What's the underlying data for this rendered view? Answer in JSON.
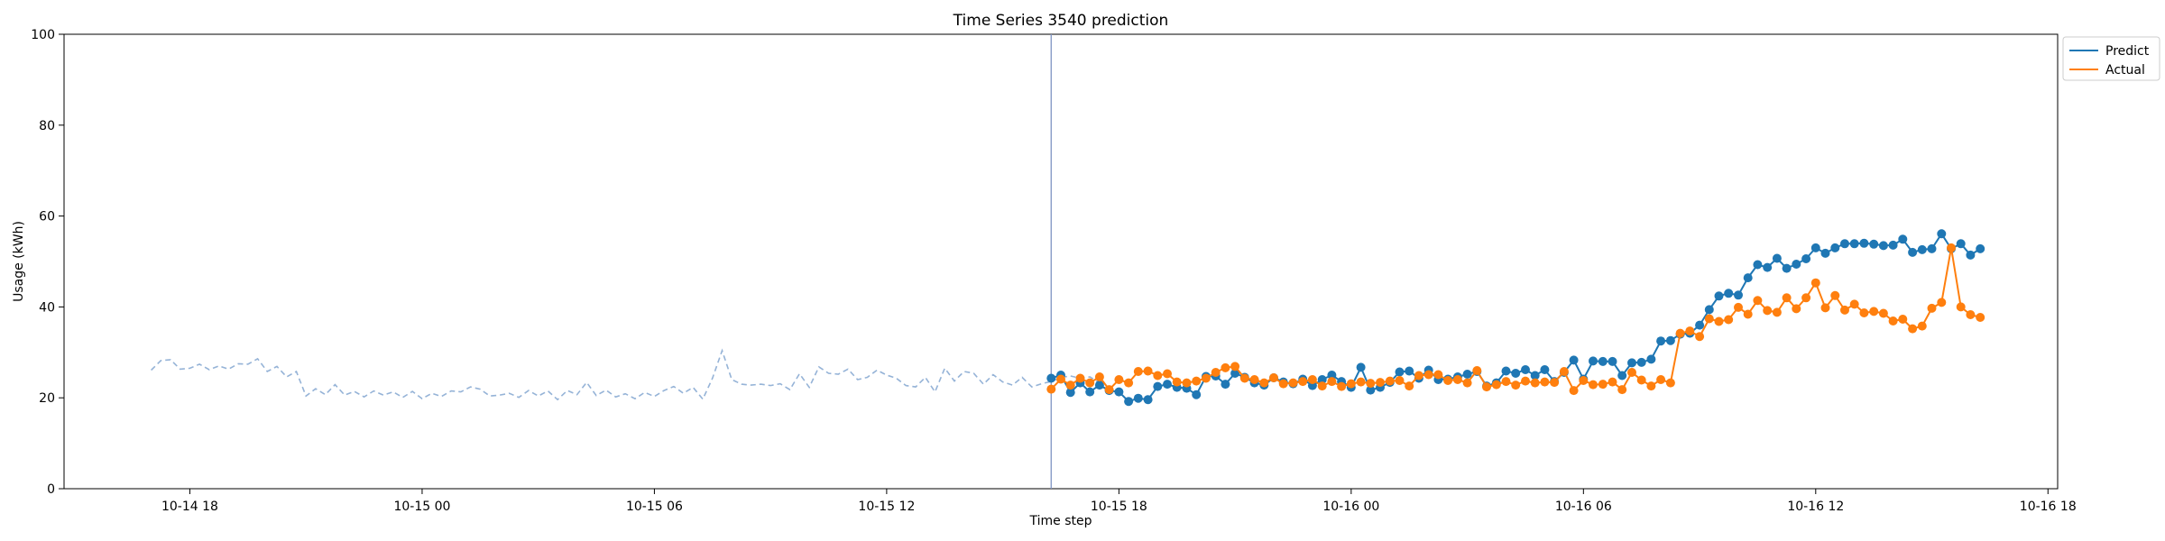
{
  "chart_data": {
    "type": "line",
    "title": "Time Series 3540 prediction",
    "xlabel": "Time step",
    "ylabel": "Usage (kWh)",
    "ylim": [
      0,
      100
    ],
    "xlim": [
      "10-14 14:45",
      "10-16 18:15"
    ],
    "x_ticks": [
      "10-14 18",
      "10-15 00",
      "10-15 06",
      "10-15 12",
      "10-15 18",
      "10-16 00",
      "10-16 06",
      "10-16 12",
      "10-16 18"
    ],
    "y_ticks": [
      0,
      20,
      40,
      60,
      80,
      100
    ],
    "grid": false,
    "legend_position": "upper right outside",
    "forecast_start": "10-15 16:15",
    "x_step_minutes": 15,
    "history": {
      "x_start": "10-14 17:00",
      "style": "dashed",
      "color": "#95b3d7",
      "values": [
        26.1,
        28.2,
        28.4,
        26.3,
        26.5,
        27.4,
        26.2,
        27.0,
        26.3,
        27.5,
        27.4,
        28.6,
        25.8,
        26.9,
        24.6,
        25.8,
        20.4,
        22.0,
        20.7,
        22.9,
        20.6,
        21.4,
        20.2,
        21.5,
        20.6,
        21.3,
        20.1,
        21.4,
        19.8,
        21.0,
        20.3,
        21.5,
        21.3,
        22.4,
        21.9,
        20.4,
        20.6,
        21.0,
        20.1,
        21.6,
        20.4,
        21.5,
        19.6,
        21.6,
        20.7,
        23.4,
        20.5,
        21.7,
        20.2,
        20.9,
        19.8,
        21.2,
        20.3,
        21.6,
        22.5,
        21.0,
        22.3,
        19.7,
        24.3,
        30.4,
        24.0,
        23.0,
        22.8,
        23.0,
        22.7,
        23.1,
        21.8,
        25.3,
        22.3,
        26.8,
        25.4,
        25.2,
        26.3,
        24.0,
        24.5,
        26.1,
        25.0,
        24.3,
        22.7,
        22.4,
        24.5,
        21.3,
        26.5,
        23.7,
        25.8,
        25.4,
        23.0,
        25.1,
        23.5,
        22.8,
        24.5,
        22.4,
        23.1,
        23.6,
        24.5,
        24.8,
        24.3,
        24.6,
        23.3
      ]
    },
    "series": [
      {
        "name": "Predict",
        "color": "#1f77b4",
        "x_start": "10-15 16:15",
        "values": [
          24.3,
          25.0,
          21.2,
          23.3,
          21.3,
          22.8,
          21.6,
          21.3,
          19.2,
          19.9,
          19.6,
          22.5,
          23.0,
          22.3,
          22.1,
          20.7,
          24.7,
          24.8,
          23.0,
          25.4,
          24.5,
          23.3,
          22.8,
          24.4,
          23.5,
          23.1,
          24.1,
          22.7,
          24.0,
          25.0,
          23.6,
          22.3,
          26.7,
          21.7,
          22.3,
          23.4,
          25.7,
          25.9,
          24.3,
          26.1,
          24.0,
          24.1,
          24.6,
          25.2,
          25.8,
          22.6,
          23.3,
          25.9,
          25.4,
          26.2,
          24.9,
          26.2,
          23.6,
          25.6,
          28.3,
          24.1,
          28.1,
          28.0,
          28.0,
          24.9,
          27.7,
          27.8,
          28.5,
          32.5,
          32.6,
          34.0,
          34.2,
          36.0,
          39.4,
          42.4,
          43.0,
          42.6,
          46.4,
          49.3,
          48.7,
          50.7,
          48.5,
          49.4,
          50.6,
          53.0,
          51.8,
          53.0,
          53.9,
          53.9,
          54.0,
          53.8,
          53.5,
          53.6,
          54.9,
          52.0,
          52.6,
          52.8,
          56.1,
          52.8,
          53.9,
          51.4,
          52.8
        ]
      },
      {
        "name": "Actual",
        "color": "#ff7f0e",
        "x_start": "10-15 16:15",
        "values": [
          21.9,
          24.1,
          22.8,
          24.3,
          23.3,
          24.6,
          21.8,
          24.0,
          23.3,
          25.8,
          25.9,
          24.9,
          25.3,
          23.5,
          23.3,
          23.7,
          24.3,
          25.6,
          26.6,
          26.9,
          24.3,
          24.0,
          23.3,
          24.4,
          23.1,
          23.3,
          23.6,
          24.0,
          22.6,
          23.6,
          22.5,
          23.1,
          23.5,
          23.2,
          23.4,
          23.7,
          23.8,
          22.6,
          24.9,
          25.1,
          25.1,
          23.8,
          24.0,
          23.3,
          26.0,
          22.4,
          22.9,
          23.6,
          22.8,
          23.7,
          23.3,
          23.5,
          23.4,
          25.8,
          21.6,
          23.8,
          22.9,
          23.0,
          23.5,
          21.8,
          25.6,
          23.9,
          22.6,
          24.0,
          23.3,
          34.2,
          34.7,
          33.5,
          37.4,
          36.8,
          37.2,
          39.9,
          38.4,
          41.4,
          39.2,
          38.8,
          42.0,
          39.6,
          42.0,
          45.3,
          39.8,
          42.5,
          39.3,
          40.6,
          38.7,
          39.0,
          38.6,
          36.9,
          37.3,
          35.2,
          35.8,
          39.7,
          41.0,
          53.0,
          40.0,
          38.3,
          37.7
        ]
      }
    ]
  }
}
